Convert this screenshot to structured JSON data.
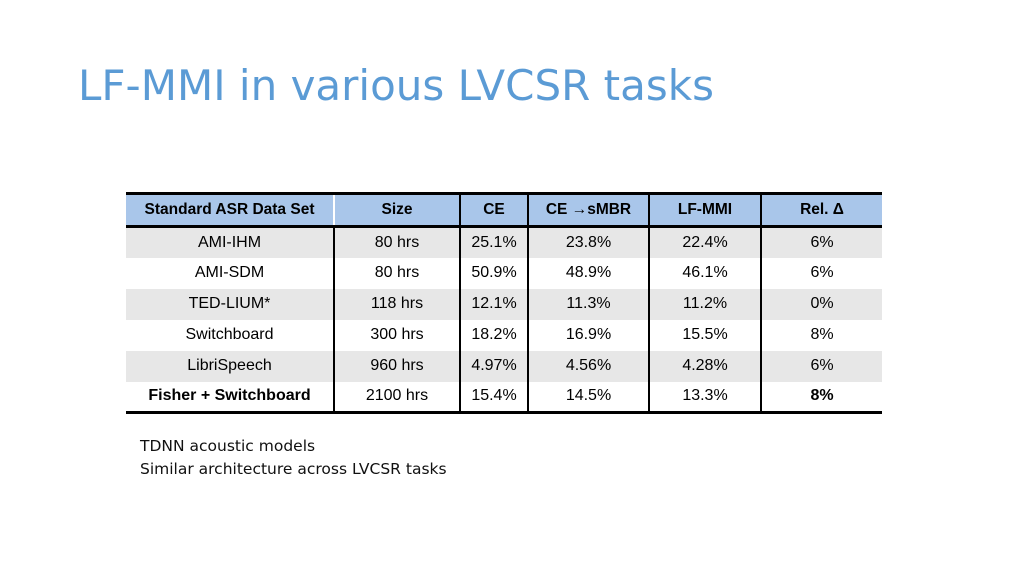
{
  "slide": {
    "title": "LF-MMI in various LVCSR tasks"
  },
  "table": {
    "headers": [
      "Standard ASR Data Set",
      "Size",
      "CE",
      "CE →sMBR",
      "LF-MMI",
      "Rel. Δ"
    ],
    "rows": [
      [
        "AMI-IHM",
        "80 hrs",
        "25.1%",
        "23.8%",
        "22.4%",
        "6%"
      ],
      [
        "AMI-SDM",
        "80 hrs",
        "50.9%",
        "48.9%",
        "46.1%",
        "6%"
      ],
      [
        "TED-LIUM*",
        "118 hrs",
        "12.1%",
        "11.3%",
        "11.2%",
        "0%"
      ],
      [
        "Switchboard",
        "300 hrs",
        "18.2%",
        "16.9%",
        "15.5%",
        "8%"
      ],
      [
        "LibriSpeech",
        "960 hrs",
        "4.97%",
        "4.56%",
        "4.28%",
        "6%"
      ],
      [
        "Fisher + Switchboard",
        "2100 hrs",
        "15.4%",
        "14.5%",
        "13.3%",
        "8%"
      ]
    ]
  },
  "notes": {
    "line1": "TDNN acoustic models",
    "line2": "Similar architecture across LVCSR tasks"
  },
  "colors": {
    "title": "#5b9bd5",
    "header_bg": "#a9c6ea",
    "row_shade": "#e7e7e7"
  }
}
